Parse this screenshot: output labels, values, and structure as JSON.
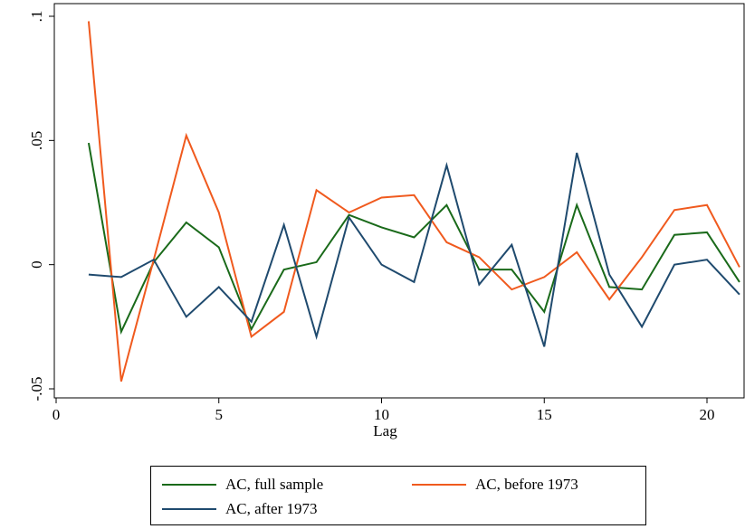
{
  "chart_data": {
    "type": "line",
    "xlabel": "Lag",
    "ylabel": "",
    "xlim": [
      0,
      21
    ],
    "ylim": [
      -0.05,
      0.1
    ],
    "x_ticks": [
      0,
      5,
      10,
      15,
      20
    ],
    "x_tick_labels": [
      "0",
      "5",
      "10",
      "15",
      "20"
    ],
    "y_ticks": [
      -0.05,
      0,
      0.05,
      0.1
    ],
    "y_tick_labels": [
      "-.05",
      "0",
      ".05",
      ".1"
    ],
    "grid": false,
    "legend_position": "bottom",
    "x": [
      1,
      2,
      3,
      4,
      5,
      6,
      7,
      8,
      9,
      10,
      11,
      12,
      13,
      14,
      15,
      16,
      17,
      18,
      19,
      20,
      21
    ],
    "series": [
      {
        "name": "AC, full sample",
        "color": "#1a6a1a",
        "values": [
          0.049,
          -0.027,
          0.001,
          0.017,
          0.007,
          -0.026,
          -0.002,
          0.001,
          0.02,
          0.015,
          0.011,
          0.024,
          -0.002,
          -0.002,
          -0.019,
          0.024,
          -0.009,
          -0.01,
          0.012,
          0.013,
          -0.007
        ]
      },
      {
        "name": "AC, before 1973",
        "color": "#f05a1e",
        "values": [
          0.098,
          -0.047,
          0.002,
          0.052,
          0.021,
          -0.029,
          -0.019,
          0.03,
          0.021,
          0.027,
          0.028,
          0.009,
          0.003,
          -0.01,
          -0.005,
          0.005,
          -0.014,
          0.003,
          0.022,
          0.024,
          -0.001
        ]
      },
      {
        "name": "AC, after 1973",
        "color": "#1f4a6e",
        "values": [
          -0.004,
          -0.005,
          0.002,
          -0.021,
          -0.009,
          -0.023,
          0.016,
          -0.029,
          0.019,
          0.0,
          -0.007,
          0.04,
          -0.008,
          0.008,
          -0.033,
          0.045,
          -0.004,
          -0.025,
          0.0,
          0.002,
          -0.012
        ]
      }
    ]
  }
}
